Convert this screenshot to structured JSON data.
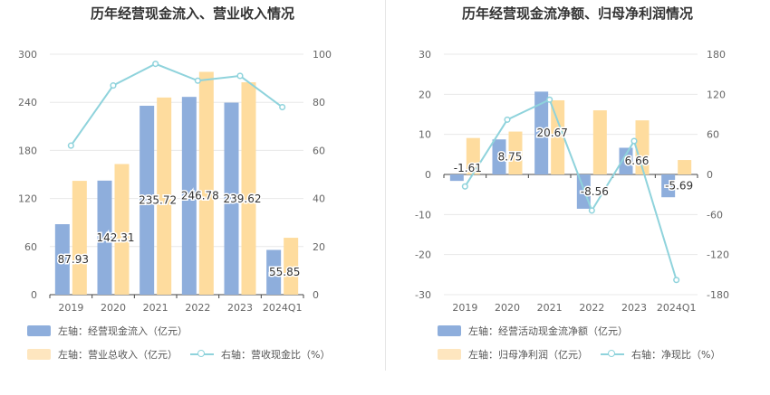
{
  "chart_data": [
    {
      "type": "bar",
      "title": "历年经营现金流入、营业收入情况",
      "categories": [
        "2019",
        "2020",
        "2021",
        "2022",
        "2023",
        "2024Q1"
      ],
      "y_left": {
        "ylim": [
          0,
          300
        ],
        "ticks": [
          "0",
          "60",
          "120",
          "180",
          "240",
          "300"
        ]
      },
      "y_right": {
        "ylim": [
          0,
          100
        ],
        "ticks": [
          "0",
          "20",
          "40",
          "60",
          "80",
          "100"
        ]
      },
      "series": [
        {
          "name": "左轴：经营现金流入（亿元）",
          "axis": "left",
          "kind": "bar",
          "color": "#8eaedc",
          "values": [
            87.93,
            142.31,
            235.72,
            246.78,
            239.62,
            55.85
          ],
          "labels": [
            "87.93",
            "142.31",
            "235.72",
            "246.78",
            "239.62",
            "55.85"
          ]
        },
        {
          "name": "左轴：营业总收入（亿元）",
          "axis": "left",
          "kind": "bar",
          "color": "#fedc9e",
          "values": [
            142,
            163,
            246,
            278,
            265,
            71
          ]
        },
        {
          "name": "右轴：营收现金比（%）",
          "axis": "right",
          "kind": "line",
          "color": "#8fd3dc",
          "values": [
            62,
            87,
            96,
            89,
            91,
            78
          ]
        }
      ]
    },
    {
      "type": "bar",
      "title": "历年经营现金流净额、归母净利润情况",
      "categories": [
        "2019",
        "2020",
        "2021",
        "2022",
        "2023",
        "2024Q1"
      ],
      "y_left": {
        "ylim": [
          -30,
          30
        ],
        "ticks": [
          "-30",
          "-20",
          "-10",
          "0",
          "10",
          "20",
          "30"
        ]
      },
      "y_right": {
        "ylim": [
          -180,
          180
        ],
        "ticks": [
          "-180",
          "-120",
          "-60",
          "0",
          "60",
          "120",
          "180"
        ]
      },
      "series": [
        {
          "name": "左轴：经营活动现金流净额（亿元）",
          "axis": "left",
          "kind": "bar",
          "color": "#8eaedc",
          "values": [
            -1.61,
            8.75,
            20.67,
            -8.56,
            6.66,
            -5.69
          ],
          "labels": [
            "-1.61",
            "8.75",
            "20.67",
            "-8.56",
            "6.66",
            "-5.69"
          ]
        },
        {
          "name": "左轴：归母净利润（亿元）",
          "axis": "left",
          "kind": "bar",
          "color": "#fedc9e",
          "values": [
            9.1,
            10.7,
            18.5,
            16.0,
            13.5,
            3.6
          ]
        },
        {
          "name": "右轴：净现比（%）",
          "axis": "right",
          "kind": "line",
          "color": "#8fd3dc",
          "values": [
            -18,
            82,
            112,
            -54,
            50,
            -158
          ]
        }
      ]
    }
  ]
}
